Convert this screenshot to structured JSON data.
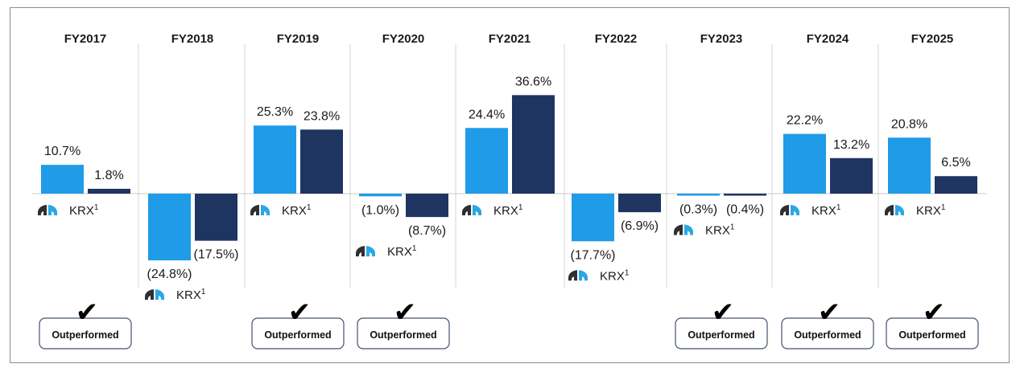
{
  "chart_data": {
    "type": "bar",
    "categories": [
      "FY2017",
      "FY2018",
      "FY2019",
      "FY2020",
      "FY2021",
      "FY2022",
      "FY2023",
      "FY2024",
      "FY2025"
    ],
    "series": [
      {
        "values": [
          10.7,
          -24.8,
          25.3,
          -1.0,
          24.4,
          -17.7,
          -0.3,
          22.2,
          20.8
        ],
        "color": "#1f9be8"
      },
      {
        "name": "KRX",
        "values": [
          1.8,
          -17.5,
          23.8,
          -8.7,
          36.6,
          -6.9,
          -0.4,
          13.2,
          6.5
        ],
        "color": "#1f3561"
      }
    ],
    "value_labels": {
      "company": [
        "10.7%",
        "(24.8%)",
        "25.3%",
        "(1.0%)",
        "24.4%",
        "(17.7%)",
        "(0.3%)",
        "22.2%",
        "20.8%"
      ],
      "index": [
        "1.8%",
        "(17.5%)",
        "23.8%",
        "(8.7%)",
        "36.6%",
        "(6.9%)",
        "(0.4%)",
        "13.2%",
        "6.5%"
      ]
    },
    "legend_label": "KRX",
    "legend_sup": "1",
    "outperformed": [
      true,
      false,
      true,
      true,
      false,
      false,
      true,
      true,
      true
    ],
    "badge_label": "Outperformed",
    "checkmark": "✔",
    "logo_icon": "company-logo-icon",
    "grid": false
  }
}
